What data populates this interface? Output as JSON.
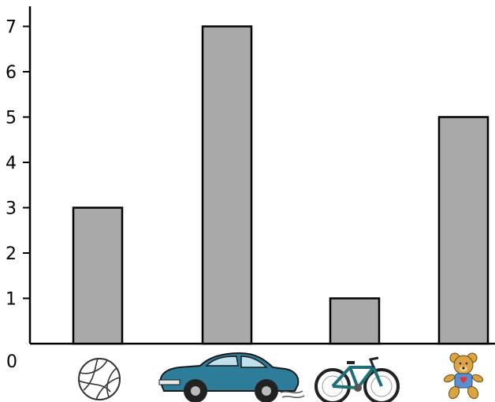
{
  "chart_data": {
    "type": "bar",
    "categories": [
      "volleyball",
      "car",
      "bicycle",
      "teddy bear"
    ],
    "category_icons": [
      "volleyball-icon",
      "car-icon",
      "bicycle-icon",
      "teddy-bear-icon"
    ],
    "values": [
      3,
      7,
      1,
      5
    ],
    "y_ticks": [
      0,
      1,
      2,
      3,
      4,
      5,
      6,
      7
    ],
    "ylim": [
      0,
      7.5
    ],
    "grid": false,
    "bar_color": "#a9a9a9",
    "bar_edge_color": "#000000",
    "colors": {
      "car_body": "#2d7d9a",
      "bicycle_frame": "#1f6f78",
      "bear_body": "#d9a441",
      "bear_shirt": "#5a8fd0",
      "bear_heart": "#e0333a"
    }
  }
}
